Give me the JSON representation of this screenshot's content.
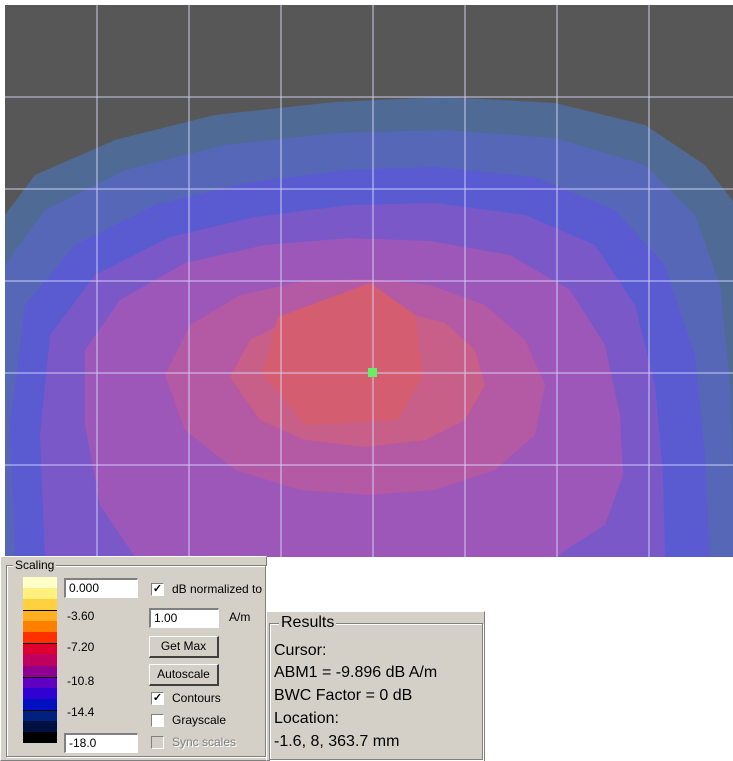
{
  "plot": {
    "background_color": "#575757",
    "grid_color": "#d8d8ff",
    "cursor_marker_color": "#66ee66",
    "contour_colors": [
      "#4f6a94",
      "#5667b7",
      "#5a5bd0",
      "#7a58c8",
      "#9c57b8",
      "#b459a4",
      "#c85f88",
      "#d55d70"
    ]
  },
  "scaling": {
    "title": "Scaling",
    "max_value": "0.000",
    "min_value": "-18.0",
    "tick_labels": [
      "-3.60",
      "-7.20",
      "-10.8",
      "-14.4"
    ],
    "colorbar": [
      "#ffffc8",
      "#fff080",
      "#ffd040",
      "#ffb020",
      "#ff8000",
      "#ff3000",
      "#e00030",
      "#c00060",
      "#900090",
      "#6000c0",
      "#3000d0",
      "#0010c0",
      "#002080",
      "#001040",
      "#000000"
    ],
    "db_normalized_label": "dB normalized to",
    "db_normalized_checked": true,
    "normalization_value": "1.00",
    "unit": "A/m",
    "get_max_label": "Get Max",
    "autoscale_label": "Autoscale",
    "contours_label": "Contours",
    "contours_checked": true,
    "grayscale_label": "Grayscale",
    "grayscale_checked": false,
    "sync_scales_label": "Sync scales",
    "sync_scales_checked": false
  },
  "results": {
    "title": "Results",
    "cursor_label": "Cursor:",
    "abm1": "ABM1 = -9.896 dB A/m",
    "bwc": "BWC Factor = 0 dB",
    "location_label": "Location:",
    "location_value": "-1.6, 8, 363.7 mm"
  }
}
